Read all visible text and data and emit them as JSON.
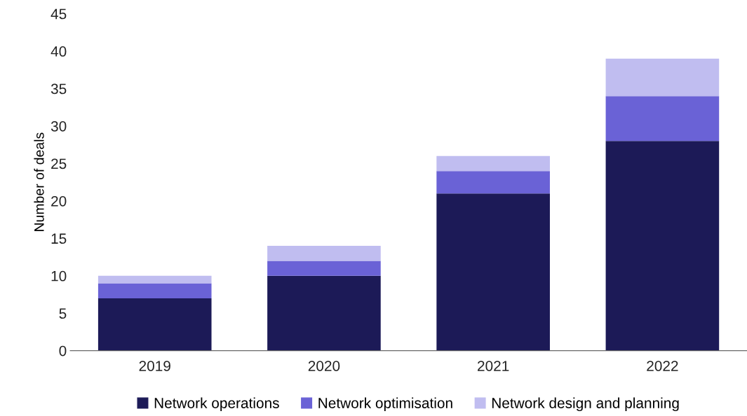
{
  "chart_data": {
    "type": "bar",
    "stacked": true,
    "ylabel": "Number of deals",
    "categories": [
      "2019",
      "2020",
      "2021",
      "2022"
    ],
    "series": [
      {
        "name": "Network operations",
        "color": "#1c1a57",
        "values": [
          7,
          10,
          21,
          28
        ]
      },
      {
        "name": "Network optimisation",
        "color": "#6a62d6",
        "values": [
          2,
          2,
          3,
          6
        ]
      },
      {
        "name": "Network design and planning",
        "color": "#c0bdf0",
        "values": [
          1,
          2,
          2,
          5
        ]
      }
    ],
    "ylim": [
      0,
      45
    ],
    "yticks": [
      0,
      5,
      10,
      15,
      20,
      25,
      30,
      35,
      40,
      45
    ],
    "grid": false,
    "legend": "bottom"
  }
}
